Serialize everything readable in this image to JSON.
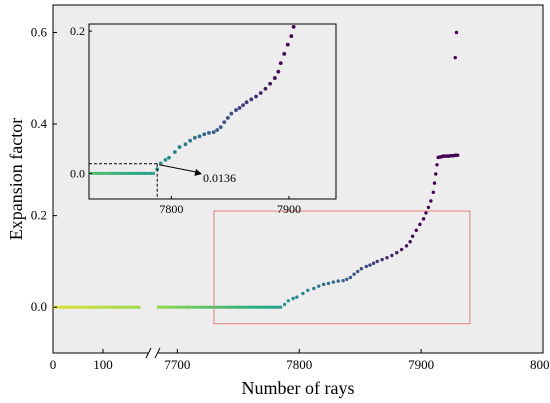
{
  "chart_data": {
    "type": "scatter",
    "xlabel": "Number of rays",
    "ylabel": "Expansion factor",
    "grid": false,
    "x_axis": {
      "broken": true,
      "segments": [
        {
          "range": [
            0,
            200
          ],
          "ticks": [
            {
              "value": 0,
              "label": "0"
            },
            {
              "value": 100,
              "label": "100"
            }
          ]
        },
        {
          "range": [
            7680,
            8000
          ],
          "ticks": [
            {
              "value": 7700,
              "label": "7700"
            },
            {
              "value": 7800,
              "label": "7800"
            },
            {
              "value": 7900,
              "label": "7900"
            },
            {
              "value": 8000,
              "label": "8000"
            }
          ]
        }
      ]
    },
    "ylim": [
      -0.1,
      0.66
    ],
    "yticks": [
      {
        "value": 0.0,
        "label": "0.0"
      },
      {
        "value": 0.2,
        "label": "0.2"
      },
      {
        "value": 0.4,
        "label": "0.4"
      },
      {
        "value": 0.6,
        "label": "0.6"
      }
    ],
    "colormap": [
      "#fde725",
      "#7ad151",
      "#22a884",
      "#2a788e",
      "#414487",
      "#440154"
    ],
    "zero_segments": [
      {
        "x_start": 0,
        "x_end": 175
      },
      {
        "x_start": 7680,
        "x_end": 7786
      }
    ],
    "points": [
      [
        7788,
        0.006
      ],
      [
        7791,
        0.014
      ],
      [
        7795,
        0.019
      ],
      [
        7798,
        0.022
      ],
      [
        7803,
        0.03
      ],
      [
        7807,
        0.037
      ],
      [
        7812,
        0.041
      ],
      [
        7816,
        0.046
      ],
      [
        7820,
        0.05
      ],
      [
        7824,
        0.052
      ],
      [
        7828,
        0.055
      ],
      [
        7832,
        0.057
      ],
      [
        7836,
        0.058
      ],
      [
        7839,
        0.061
      ],
      [
        7842,
        0.065
      ],
      [
        7845,
        0.072
      ],
      [
        7848,
        0.078
      ],
      [
        7851,
        0.084
      ],
      [
        7855,
        0.089
      ],
      [
        7858,
        0.092
      ],
      [
        7861,
        0.096
      ],
      [
        7864,
        0.1
      ],
      [
        7868,
        0.104
      ],
      [
        7872,
        0.108
      ],
      [
        7876,
        0.113
      ],
      [
        7880,
        0.119
      ],
      [
        7884,
        0.126
      ],
      [
        7888,
        0.134
      ],
      [
        7891,
        0.143
      ],
      [
        7893,
        0.155
      ],
      [
        7896,
        0.168
      ],
      [
        7899,
        0.181
      ],
      [
        7902,
        0.193
      ],
      [
        7904,
        0.206
      ],
      [
        7906,
        0.218
      ],
      [
        7908,
        0.232
      ],
      [
        7910,
        0.251
      ],
      [
        7911,
        0.271
      ],
      [
        7912,
        0.291
      ],
      [
        7913,
        0.311
      ],
      [
        7914,
        0.327
      ],
      [
        7915,
        0.328
      ],
      [
        7916,
        0.328
      ],
      [
        7917,
        0.329
      ],
      [
        7918,
        0.33
      ],
      [
        7919,
        0.33
      ],
      [
        7920,
        0.33
      ],
      [
        7921,
        0.33
      ],
      [
        7922,
        0.33
      ],
      [
        7923,
        0.33
      ],
      [
        7924,
        0.331
      ],
      [
        7925,
        0.331
      ],
      [
        7926,
        0.331
      ],
      [
        7927,
        0.331
      ],
      [
        7928,
        0.332
      ],
      [
        7929,
        0.332
      ],
      [
        7930,
        0.332
      ],
      [
        7928,
        0.545
      ],
      [
        7929,
        0.6
      ]
    ],
    "highlight_box": {
      "x": [
        7730,
        7940
      ],
      "y": [
        -0.036,
        0.21
      ]
    },
    "inset": {
      "xlim": [
        7730,
        7940
      ],
      "ylim": [
        -0.036,
        0.21
      ],
      "xticks": [
        {
          "value": 7800,
          "label": "7800"
        },
        {
          "value": 7900,
          "label": "7900"
        }
      ],
      "yticks": [
        {
          "value": 0.0,
          "label": "0.0"
        },
        {
          "value": 0.2,
          "label": "0.2"
        }
      ],
      "annotation": {
        "x": 7788,
        "y": 0.0136,
        "label": "0.0136"
      }
    }
  }
}
